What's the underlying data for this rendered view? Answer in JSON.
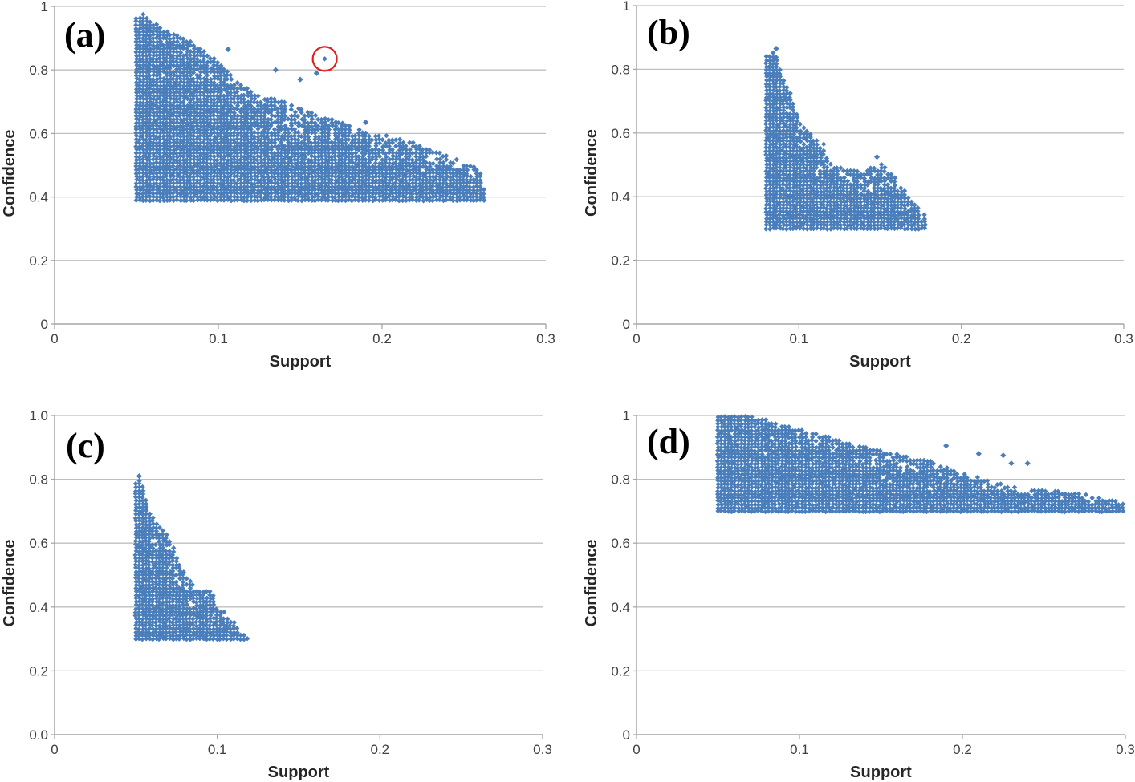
{
  "figure": {
    "marker_color": "#4A7EBB",
    "grid_color": "#BFBFBF",
    "highlight_color": "#E02020"
  },
  "chart_data": [
    {
      "type": "scatter",
      "panel_label": "(a)",
      "xlabel": "Support",
      "ylabel": "Confidence",
      "xlim": [
        0,
        0.3
      ],
      "ylim": [
        0,
        1
      ],
      "xticks": [
        0,
        0.1,
        0.2,
        0.3
      ],
      "xtick_labels": [
        "0",
        "0.1",
        "0.2",
        "0.3"
      ],
      "yticks": [
        0,
        0.2,
        0.4,
        0.6,
        0.8,
        1
      ],
      "ytick_labels": [
        "0",
        "0.2",
        "0.4",
        "0.6",
        "0.8",
        "1"
      ],
      "grid": "horizontal",
      "series": [
        {
          "x_min": 0.05,
          "y_min": 0.39,
          "upper_envelope": [
            [
              0.05,
              0.97
            ],
            [
              0.055,
              0.975
            ],
            [
              0.065,
              0.93
            ],
            [
              0.08,
              0.9
            ],
            [
              0.1,
              0.83
            ],
            [
              0.12,
              0.73
            ],
            [
              0.14,
              0.7
            ],
            [
              0.16,
              0.66
            ],
            [
              0.18,
              0.63
            ],
            [
              0.2,
              0.6
            ],
            [
              0.22,
              0.57
            ],
            [
              0.24,
              0.53
            ],
            [
              0.255,
              0.5
            ],
            [
              0.26,
              0.48
            ],
            [
              0.264,
              0.4
            ]
          ],
          "outliers": [
            [
              0.106,
              0.865
            ],
            [
              0.135,
              0.8
            ],
            [
              0.15,
              0.77
            ],
            [
              0.16,
              0.79
            ],
            [
              0.19,
              0.635
            ]
          ],
          "highlighted_point": [
            0.165,
            0.835
          ]
        }
      ]
    },
    {
      "type": "scatter",
      "panel_label": "(b)",
      "xlabel": "Support",
      "ylabel": "Confidence",
      "xlim": [
        0,
        0.3
      ],
      "ylim": [
        0,
        1
      ],
      "xticks": [
        0,
        0.1,
        0.2,
        0.3
      ],
      "xtick_labels": [
        "0",
        "0.1",
        "0.2",
        "0.3"
      ],
      "yticks": [
        0,
        0.2,
        0.4,
        0.6,
        0.8,
        1
      ],
      "ytick_labels": [
        "0",
        "0.2",
        "0.4",
        "0.6",
        "0.8",
        "1"
      ],
      "grid": "horizontal",
      "series": [
        {
          "x_min": 0.08,
          "y_min": 0.3,
          "upper_envelope": [
            [
              0.08,
              0.84
            ],
            [
              0.085,
              0.86
            ],
            [
              0.09,
              0.78
            ],
            [
              0.095,
              0.72
            ],
            [
              0.1,
              0.64
            ],
            [
              0.11,
              0.58
            ],
            [
              0.115,
              0.57
            ],
            [
              0.12,
              0.5
            ],
            [
              0.14,
              0.48
            ],
            [
              0.15,
              0.51
            ],
            [
              0.16,
              0.46
            ],
            [
              0.17,
              0.39
            ],
            [
              0.178,
              0.35
            ]
          ],
          "outliers": [
            [
              0.086,
              0.865
            ],
            [
              0.148,
              0.525
            ]
          ]
        }
      ]
    },
    {
      "type": "scatter",
      "panel_label": "(c)",
      "xlabel": "Support",
      "ylabel": "Confidence",
      "xlim": [
        0,
        0.3
      ],
      "ylim": [
        0,
        1
      ],
      "xticks": [
        0,
        0.1,
        0.2,
        0.3
      ],
      "xtick_labels": [
        "0",
        "0.1",
        "0.2",
        "0.3"
      ],
      "yticks": [
        0,
        0.2,
        0.4,
        0.6,
        0.8,
        1
      ],
      "ytick_labels": [
        "0.0",
        "0.2",
        "0.4",
        "0.6",
        "0.8",
        "1.0"
      ],
      "grid": "horizontal",
      "series": [
        {
          "x_min": 0.05,
          "y_min": 0.3,
          "upper_envelope": [
            [
              0.05,
              0.79
            ],
            [
              0.053,
              0.81
            ],
            [
              0.058,
              0.7
            ],
            [
              0.065,
              0.65
            ],
            [
              0.07,
              0.62
            ],
            [
              0.08,
              0.5
            ],
            [
              0.09,
              0.46
            ],
            [
              0.097,
              0.45
            ],
            [
              0.1,
              0.4
            ],
            [
              0.11,
              0.36
            ],
            [
              0.115,
              0.32
            ],
            [
              0.12,
              0.3
            ]
          ],
          "outliers": [
            [
              0.052,
              0.81
            ]
          ]
        }
      ]
    },
    {
      "type": "scatter",
      "panel_label": "(d)",
      "xlabel": "Support",
      "ylabel": "Confidence",
      "xlim": [
        0,
        0.3
      ],
      "ylim": [
        0,
        1
      ],
      "xticks": [
        0,
        0.1,
        0.2,
        0.3
      ],
      "xtick_labels": [
        "0",
        "0.1",
        "0.2",
        "0.3"
      ],
      "yticks": [
        0,
        0.2,
        0.4,
        0.6,
        0.8,
        1
      ],
      "ytick_labels": [
        "0",
        "0.2",
        "0.4",
        "0.6",
        "0.8",
        "1"
      ],
      "grid": "horizontal",
      "series": [
        {
          "x_min": 0.05,
          "y_min": 0.7,
          "upper_envelope": [
            [
              0.05,
              1.0
            ],
            [
              0.07,
              1.0
            ],
            [
              0.09,
              0.97
            ],
            [
              0.12,
              0.93
            ],
            [
              0.15,
              0.89
            ],
            [
              0.18,
              0.86
            ],
            [
              0.2,
              0.82
            ],
            [
              0.22,
              0.79
            ],
            [
              0.24,
              0.77
            ],
            [
              0.27,
              0.76
            ],
            [
              0.29,
              0.74
            ],
            [
              0.3,
              0.72
            ]
          ],
          "outliers": [
            [
              0.19,
              0.905
            ],
            [
              0.21,
              0.88
            ],
            [
              0.225,
              0.875
            ],
            [
              0.23,
              0.85
            ],
            [
              0.24,
              0.85
            ]
          ]
        }
      ]
    }
  ]
}
